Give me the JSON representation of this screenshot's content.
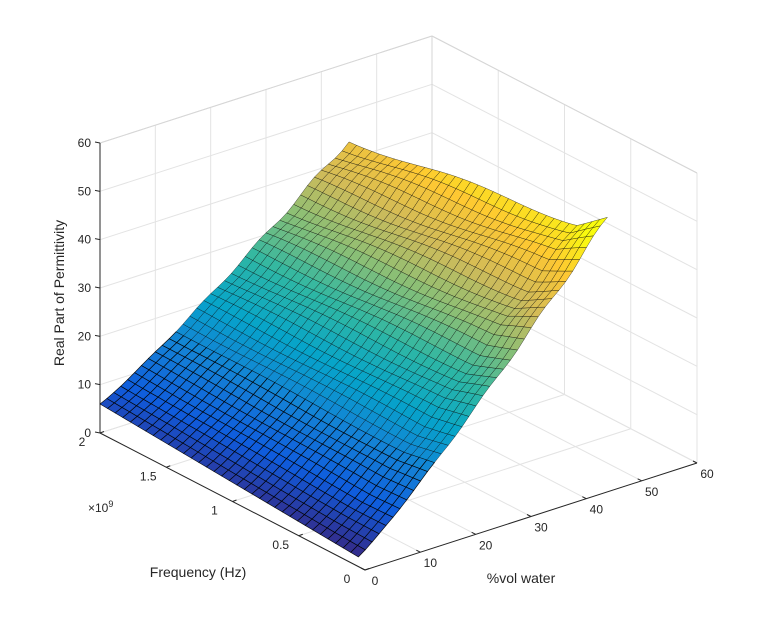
{
  "chart_data": {
    "type": "surface",
    "xlabel": "%vol water",
    "ylabel": "Frequency (Hz)",
    "zlabel": "Real Part of Permittivity",
    "y_exponent_label": "×10",
    "y_exponent_power": "9",
    "x_ticks": [
      "0",
      "10",
      "20",
      "30",
      "40",
      "50",
      "60"
    ],
    "y_ticks": [
      "0",
      "0.5",
      "1",
      "1.5",
      "2"
    ],
    "z_ticks": [
      "0",
      "10",
      "20",
      "30",
      "40",
      "50",
      "60"
    ],
    "xlim": [
      0,
      60
    ],
    "ylim_e9": [
      0,
      2
    ],
    "zlim": [
      0,
      60
    ],
    "water_range": [
      0,
      45
    ],
    "frequency_range_e9": [
      0.05,
      2.0
    ],
    "permittivity_at_max_water": {
      "low_freq": 52,
      "high_freq": 44
    },
    "permittivity_at_zero_water": 2,
    "grid": true,
    "box": true,
    "colormap": [
      "#352a87",
      "#0f5cdd",
      "#1481d6",
      "#06a4ca",
      "#2eb7a4",
      "#87bf77",
      "#d1bb59",
      "#fec832",
      "#f9fb0e"
    ]
  }
}
